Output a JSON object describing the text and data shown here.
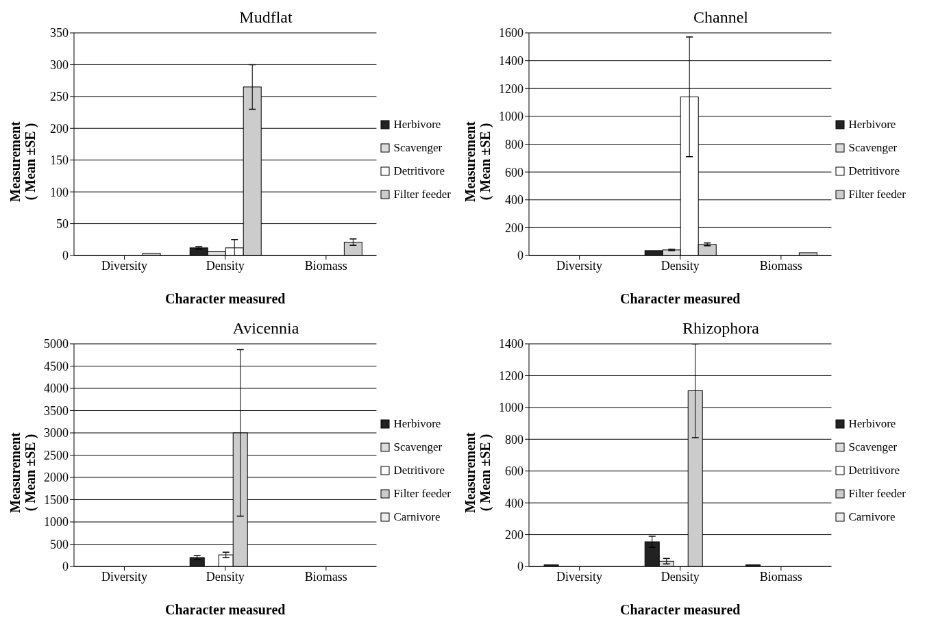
{
  "chart_data": [
    {
      "type": "bar",
      "title": "Mudflat",
      "xlabel": "Character measured",
      "ylabel": "Measurement\n( Mean ±SE )",
      "categories": [
        "Diversity",
        "Density",
        "Biomass"
      ],
      "ylim": [
        0,
        350
      ],
      "yticks": [
        0,
        50,
        100,
        150,
        200,
        250,
        300,
        350
      ],
      "grid": "y",
      "legend": "right",
      "series": [
        {
          "name": "Herbivore",
          "color": "#222222",
          "values": [
            null,
            12,
            null
          ],
          "errors": [
            null,
            2,
            null
          ]
        },
        {
          "name": "Scavenger",
          "color": "#dddddd",
          "values": [
            null,
            6,
            null
          ],
          "errors": [
            null,
            null,
            null
          ]
        },
        {
          "name": "Detritivore",
          "color": "#ffffff",
          "values": [
            null,
            12,
            null
          ],
          "errors": [
            null,
            13,
            null
          ]
        },
        {
          "name": "Filter feeder",
          "color": "#cccccc",
          "values": [
            3,
            265,
            21
          ],
          "errors": [
            null,
            35,
            5
          ]
        }
      ]
    },
    {
      "type": "bar",
      "title": "Channel",
      "xlabel": "Character measured",
      "ylabel": "Measurement\n( Mean ±SE )",
      "categories": [
        "Diversity",
        "Density",
        "Biomass"
      ],
      "ylim": [
        0,
        1600
      ],
      "yticks": [
        0,
        200,
        400,
        600,
        800,
        1000,
        1200,
        1400,
        1600
      ],
      "grid": "y",
      "legend": "right",
      "series": [
        {
          "name": "Herbivore",
          "color": "#222222",
          "values": [
            null,
            35,
            null
          ],
          "errors": [
            null,
            null,
            null
          ]
        },
        {
          "name": "Scavenger",
          "color": "#dddddd",
          "values": [
            null,
            40,
            null
          ],
          "errors": [
            null,
            5,
            null
          ]
        },
        {
          "name": "Detritivore",
          "color": "#ffffff",
          "values": [
            null,
            1140,
            null
          ],
          "errors": [
            null,
            430,
            null
          ]
        },
        {
          "name": "Filter feeder",
          "color": "#cccccc",
          "values": [
            null,
            80,
            20
          ],
          "errors": [
            null,
            10,
            null
          ]
        }
      ]
    },
    {
      "type": "bar",
      "title": "Avicennia",
      "xlabel": "Character measured",
      "ylabel": "Measurement\n( Mean ±SE )",
      "categories": [
        "Diversity",
        "Density",
        "Biomass"
      ],
      "ylim": [
        0,
        5000
      ],
      "yticks": [
        0,
        500,
        1000,
        1500,
        2000,
        2500,
        3000,
        3500,
        4000,
        4500,
        5000
      ],
      "grid": "y",
      "legend": "right",
      "series": [
        {
          "name": "Herbivore",
          "color": "#222222",
          "values": [
            null,
            200,
            null
          ],
          "errors": [
            null,
            45,
            null
          ]
        },
        {
          "name": "Scavenger",
          "color": "#dddddd",
          "values": [
            null,
            null,
            null
          ],
          "errors": [
            null,
            null,
            null
          ]
        },
        {
          "name": "Detritivore",
          "color": "#ffffff",
          "values": [
            null,
            260,
            null
          ],
          "errors": [
            null,
            60,
            null
          ]
        },
        {
          "name": "Filter feeder",
          "color": "#cccccc",
          "values": [
            null,
            3000,
            null
          ],
          "errors": [
            null,
            1870,
            null
          ]
        },
        {
          "name": "Carnivore",
          "color": "#eeeeee",
          "values": [
            null,
            null,
            null
          ],
          "errors": [
            null,
            null,
            null
          ]
        }
      ]
    },
    {
      "type": "bar",
      "title": "Rhizophora",
      "xlabel": "Character measured",
      "ylabel": "Measurement\n( Mean ±SE )",
      "categories": [
        "Diversity",
        "Density",
        "Biomass"
      ],
      "ylim": [
        0,
        1400
      ],
      "yticks": [
        0,
        200,
        400,
        600,
        800,
        1000,
        1200,
        1400
      ],
      "grid": "y",
      "legend": "right",
      "series": [
        {
          "name": "Herbivore",
          "color": "#222222",
          "values": [
            10,
            155,
            10
          ],
          "errors": [
            null,
            35,
            null
          ]
        },
        {
          "name": "Scavenger",
          "color": "#dddddd",
          "values": [
            null,
            33,
            null
          ],
          "errors": [
            null,
            17,
            null
          ]
        },
        {
          "name": "Detritivore",
          "color": "#ffffff",
          "values": [
            null,
            null,
            null
          ],
          "errors": [
            null,
            null,
            null
          ]
        },
        {
          "name": "Filter feeder",
          "color": "#cccccc",
          "values": [
            null,
            1105,
            null
          ],
          "errors": [
            null,
            295,
            null
          ]
        },
        {
          "name": "Carnivore",
          "color": "#eeeeee",
          "values": [
            null,
            null,
            null
          ],
          "errors": [
            null,
            null,
            null
          ]
        }
      ]
    }
  ]
}
